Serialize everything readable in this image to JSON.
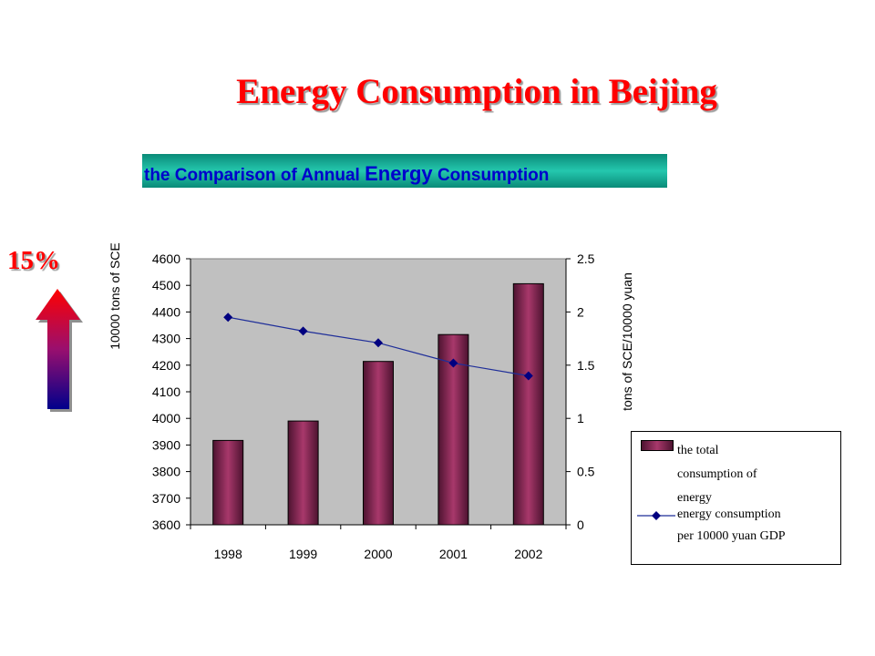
{
  "slide": {
    "title": "Energy Consumption in Beijing",
    "banner_pre": "the Comparison of Annual ",
    "banner_emph": "Energy",
    "banner_post": " Consumption",
    "increase_label": "15%"
  },
  "colors": {
    "title": "#ff0000",
    "banner_text": "#0000cc",
    "bar_dark": "#4d1330",
    "bar_light": "#a8386b",
    "line": "#1f2e99",
    "marker": "#000080",
    "plot_bg": "#c0c0c0"
  },
  "chart_data": {
    "type": "bar",
    "title": "the Comparison of Annual Energy Consumption",
    "categories": [
      "1998",
      "1999",
      "2000",
      "2001",
      "2002"
    ],
    "series": [
      {
        "name": "the total consumption of energy",
        "type": "bar",
        "axis": "left",
        "values": [
          3917,
          3990,
          4214,
          4315,
          4506
        ]
      },
      {
        "name": "energy consumption per 10000 yuan GDP",
        "type": "line",
        "axis": "right",
        "values": [
          1.95,
          1.82,
          1.71,
          1.52,
          1.4
        ]
      }
    ],
    "ylabel": "10000 tons of SCE",
    "y2label": "tons of SCE/10000 yuan",
    "ylim": [
      3600,
      4600
    ],
    "y2lim": [
      0,
      2.5
    ],
    "yticks": [
      "3600",
      "3700",
      "3800",
      "3900",
      "4000",
      "4100",
      "4200",
      "4300",
      "4400",
      "4500",
      "4600"
    ],
    "y2ticks": [
      "0",
      "0.5",
      "1",
      "1.5",
      "2",
      "2.5"
    ],
    "legend_position": "bottom-right",
    "legend": {
      "bar_lines": [
        "the total",
        "consumption of",
        "energy"
      ],
      "line_lines": [
        "energy consumption",
        "per 10000 yuan GDP"
      ]
    },
    "grid": false
  }
}
